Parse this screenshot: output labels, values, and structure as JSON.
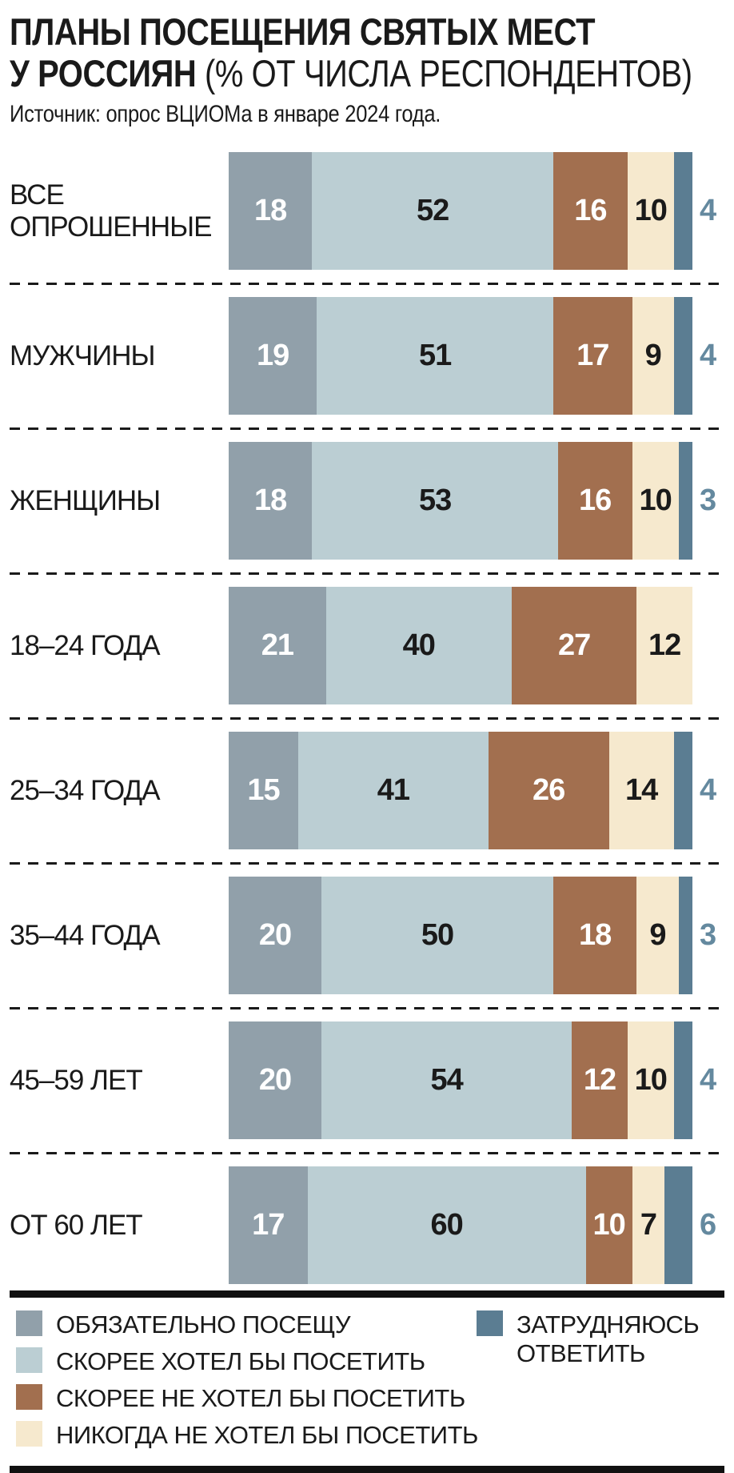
{
  "header": {
    "title_line1": "ПЛАНЫ ПОСЕЩЕНИЯ СВЯТЫХ МЕСТ",
    "title_line2_bold": "У РОССИЯН",
    "title_line2_normal": " (% ОТ ЧИСЛА РЕСПОНДЕНТОВ)",
    "source": "Источник: опрос ВЦИОМа в январе 2024 года."
  },
  "colors": {
    "text": "#1a1a1a",
    "outside_value_label": "#64899f",
    "divider": "#111111"
  },
  "chart_data": {
    "type": "bar",
    "stacked": true,
    "orientation": "horizontal",
    "unit": "%",
    "xlim": [
      0,
      100
    ],
    "grid": false,
    "legend_position": "bottom",
    "categories": [
      "ВСЕ ОПРОШЕННЫЕ",
      "МУЖЧИНЫ",
      "ЖЕНЩИНЫ",
      "18–24 ГОДА",
      "25–34 ГОДА",
      "35–44 ГОДА",
      "45–59 ЛЕТ",
      "ОТ 60 ЛЕТ"
    ],
    "series": [
      {
        "name": "ОБЯЗАТЕЛЬНО ПОСЕЩУ",
        "color": "#91a0aa",
        "value_text_color": "#ffffff",
        "value_position": "inside",
        "values": [
          18,
          19,
          18,
          21,
          15,
          20,
          20,
          17
        ]
      },
      {
        "name": "СКОРЕЕ ХОТЕЛ БЫ ПОСЕТИТЬ",
        "color": "#bbced3",
        "value_text_color": "#1a1a1a",
        "value_position": "inside",
        "values": [
          52,
          51,
          53,
          40,
          41,
          50,
          54,
          60
        ]
      },
      {
        "name": "СКОРЕЕ НЕ ХОТЕЛ БЫ ПОСЕТИТЬ",
        "color": "#a26f4f",
        "value_text_color": "#ffffff",
        "value_position": "inside",
        "values": [
          16,
          17,
          16,
          27,
          26,
          18,
          12,
          10
        ]
      },
      {
        "name": "НИКОГДА НЕ ХОТЕЛ БЫ ПОСЕТИТЬ",
        "color": "#f6e9ce",
        "value_text_color": "#1a1a1a",
        "value_position": "inside",
        "values": [
          10,
          9,
          10,
          12,
          14,
          9,
          10,
          7
        ]
      },
      {
        "name": "ЗАТРУДНЯЮСЬ ОТВЕТИТЬ",
        "color": "#5b7d92",
        "value_text_color": "#64899f",
        "value_position": "outside-right",
        "values": [
          4,
          4,
          3,
          0,
          4,
          3,
          4,
          6
        ]
      }
    ]
  }
}
